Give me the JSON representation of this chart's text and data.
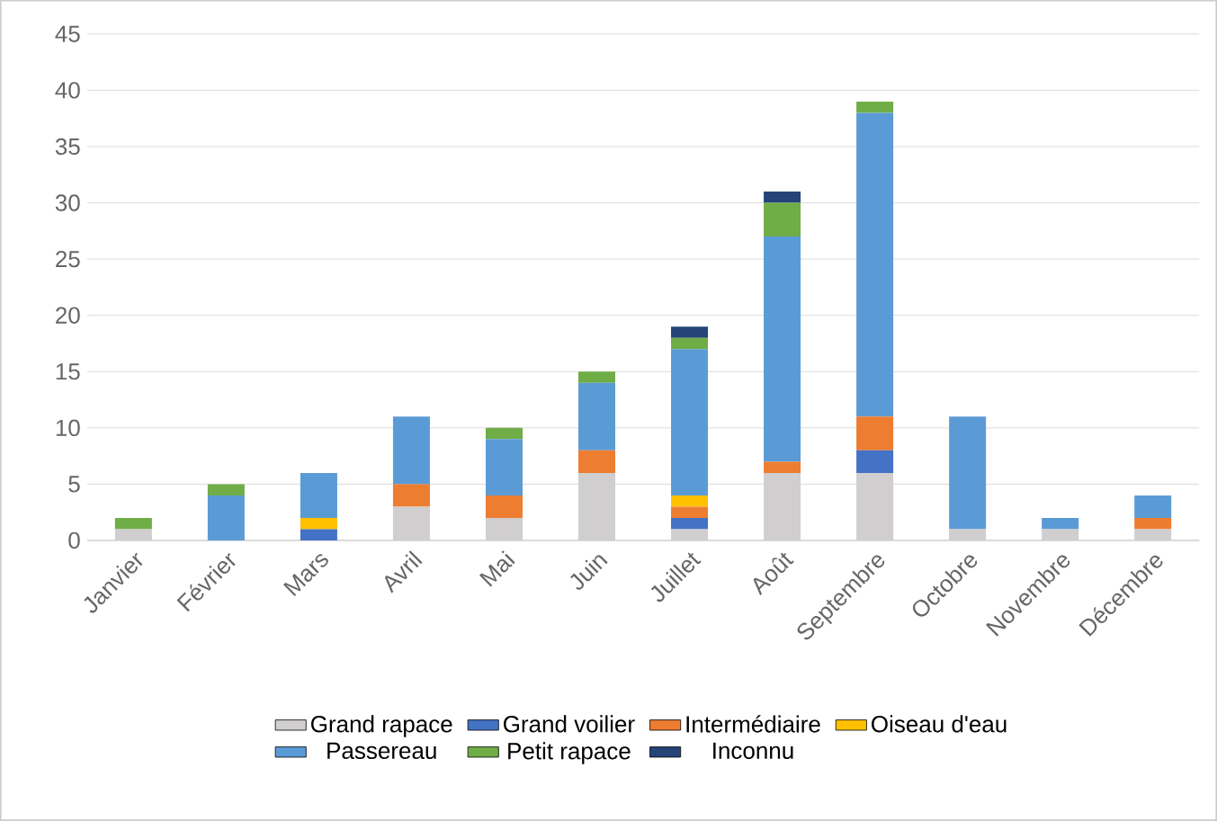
{
  "chart_data": {
    "type": "bar",
    "stacked": true,
    "categories": [
      "Janvier",
      "Février",
      "Mars",
      "Avril",
      "Mai",
      "Juin",
      "Juillet",
      "Août",
      "Septembre",
      "Octobre",
      "Novembre",
      "Décembre"
    ],
    "series": [
      {
        "name": "Grand rapace",
        "color": "#d0cece",
        "values": [
          1,
          0,
          0,
          3,
          2,
          6,
          1,
          6,
          6,
          1,
          1,
          1
        ]
      },
      {
        "name": "Grand voilier",
        "color": "#4472c4",
        "values": [
          0,
          0,
          1,
          0,
          0,
          0,
          1,
          0,
          2,
          0,
          0,
          0
        ]
      },
      {
        "name": "Intermédiaire",
        "color": "#ed7d31",
        "values": [
          0,
          0,
          0,
          2,
          2,
          2,
          1,
          1,
          3,
          0,
          0,
          1
        ]
      },
      {
        "name": "Oiseau d'eau",
        "color": "#ffc000",
        "values": [
          0,
          0,
          1,
          0,
          0,
          0,
          1,
          0,
          0,
          0,
          0,
          0
        ]
      },
      {
        "name": "Passereau",
        "color": "#5b9bd5",
        "values": [
          0,
          4,
          4,
          6,
          5,
          6,
          13,
          20,
          27,
          10,
          1,
          2
        ]
      },
      {
        "name": "Petit rapace",
        "color": "#70ad47",
        "values": [
          1,
          1,
          0,
          0,
          1,
          1,
          1,
          3,
          1,
          0,
          0,
          0
        ]
      },
      {
        "name": "Inconnu",
        "color": "#264478",
        "values": [
          0,
          0,
          0,
          0,
          0,
          0,
          1,
          1,
          0,
          0,
          0,
          0
        ]
      }
    ],
    "ylim": [
      0,
      45
    ],
    "yticks": [
      0,
      5,
      10,
      15,
      20,
      25,
      30,
      35,
      40,
      45
    ],
    "grid": "y",
    "legend": "bottom"
  }
}
